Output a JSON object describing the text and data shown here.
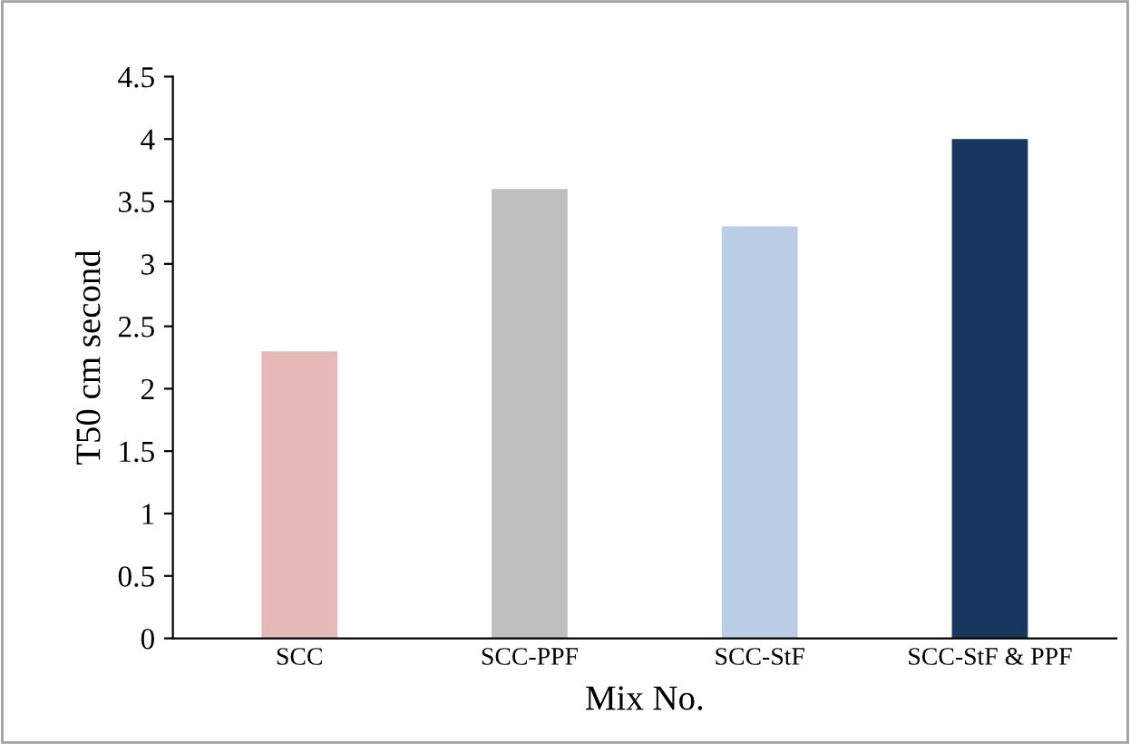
{
  "chart_data": {
    "type": "bar",
    "xlabel": "Mix No.",
    "ylabel": "T50 cm second",
    "categories": [
      "SCC",
      "SCC-PPF",
      "SCC-StF",
      "SCC-StF & PPF"
    ],
    "values": [
      2.3,
      3.6,
      3.3,
      4.0
    ],
    "colors": [
      "#e6b9b8",
      "#bfbfbf",
      "#b9cde5",
      "#17375e"
    ],
    "ylim": [
      0,
      4.5
    ],
    "yticks": [
      0,
      0.5,
      1,
      1.5,
      2,
      2.5,
      3,
      3.5,
      4,
      4.5
    ],
    "grid": false,
    "legend": false
  }
}
